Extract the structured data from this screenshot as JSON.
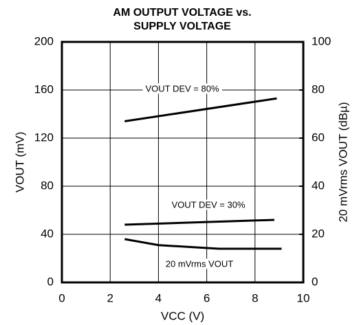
{
  "chart_data": {
    "type": "line",
    "title": [
      "AM OUTPUT VOLTAGE vs.",
      "SUPPLY VOLTAGE"
    ],
    "xlabel": "VCC (V)",
    "ylabel": "VOUT (mV)",
    "y2label": "20 mVrms VOUT (dBµ)",
    "xlim": [
      0,
      10
    ],
    "xticks": [
      0,
      2,
      4,
      6,
      8,
      10
    ],
    "ylim": [
      0,
      200
    ],
    "yticks": [
      0,
      40,
      80,
      120,
      160,
      200
    ],
    "y2lim": [
      0,
      100
    ],
    "y2ticks": [
      0,
      20,
      40,
      60,
      80,
      100
    ],
    "grid": true,
    "series": [
      {
        "name": "VOUT DEV = 80%",
        "color": "#000000",
        "x": [
          2.6,
          8.9
        ],
        "values": [
          134,
          153
        ]
      },
      {
        "name": "VOUT DEV = 30%",
        "color": "#000000",
        "x": [
          2.6,
          8.8
        ],
        "values": [
          48,
          52
        ]
      },
      {
        "name": "20 mVrms VOUT",
        "color": "#000000",
        "axis": "y2",
        "x": [
          2.6,
          4,
          6.5,
          9.1
        ],
        "values": [
          18,
          15.5,
          14,
          14
        ]
      }
    ]
  }
}
